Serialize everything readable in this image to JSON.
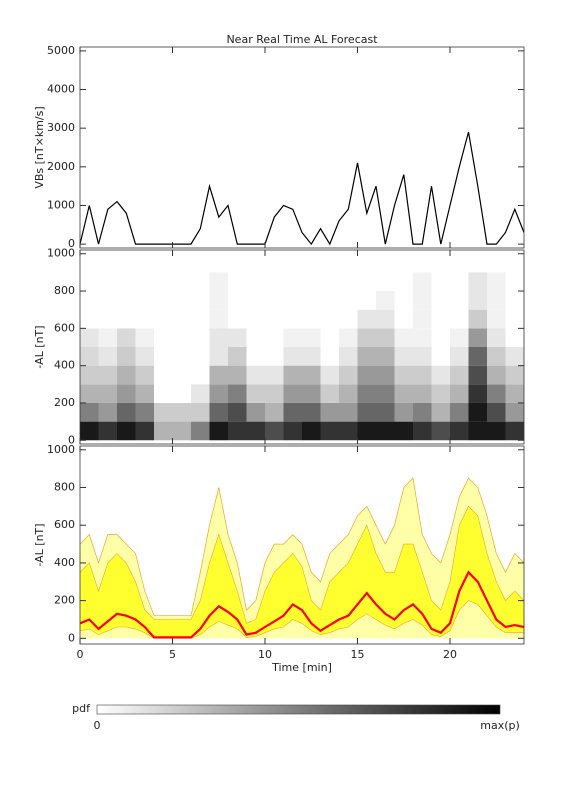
{
  "chart_data": [
    {
      "type": "line",
      "title": "Near Real Time AL Forecast",
      "ylabel": "VBs [nT×km/s]",
      "color": "#000000",
      "xlim": [
        0,
        24
      ],
      "ylim": [
        -100,
        5100
      ],
      "yticks": [
        0,
        1000,
        2000,
        3000,
        4000,
        5000
      ],
      "x": [
        0,
        0.5,
        1,
        1.5,
        2,
        2.5,
        3,
        3.5,
        4,
        4.5,
        5,
        5.5,
        6,
        6.5,
        7,
        7.5,
        8,
        8.5,
        9,
        9.5,
        10,
        10.5,
        11,
        11.5,
        12,
        12.5,
        13,
        13.5,
        14,
        14.5,
        15,
        15.5,
        16,
        16.5,
        17,
        17.5,
        18,
        18.5,
        19,
        19.5,
        20,
        20.5,
        21,
        21.5,
        22,
        22.5,
        23,
        23.5,
        24
      ],
      "values": [
        0,
        1000,
        0,
        900,
        1100,
        800,
        0,
        0,
        0,
        0,
        0,
        0,
        0,
        400,
        1500,
        700,
        1000,
        0,
        0,
        0,
        0,
        700,
        1000,
        900,
        300,
        0,
        400,
        0,
        600,
        900,
        2100,
        800,
        1500,
        0,
        1000,
        1800,
        0,
        0,
        1500,
        0,
        1000,
        2000,
        2900,
        1500,
        0,
        0,
        300,
        900,
        300
      ]
    },
    {
      "type": "heatmap",
      "ylabel": "-AL [nT]",
      "xlim": [
        0,
        24
      ],
      "ylim": [
        -20,
        1020
      ],
      "yticks": [
        0,
        200,
        400,
        600,
        800,
        1000
      ],
      "xbins": [
        0,
        1,
        2,
        3,
        4,
        5,
        6,
        7,
        8,
        9,
        10,
        11,
        12,
        13,
        14,
        15,
        16,
        17,
        18,
        19,
        20,
        21,
        22,
        23,
        24
      ],
      "ybins": [
        0,
        100,
        200,
        300,
        400,
        500,
        600,
        700,
        800,
        900
      ],
      "z": [
        [
          0.9,
          0.8,
          0.9,
          0.8,
          0.3,
          0.3,
          0.5,
          0.9,
          0.8,
          0.8,
          0.7,
          0.8,
          0.9,
          0.8,
          0.8,
          0.9,
          0.9,
          0.9,
          0.8,
          0.7,
          0.8,
          0.9,
          0.9,
          0.8
        ],
        [
          0.5,
          0.4,
          0.6,
          0.5,
          0.2,
          0.2,
          0.2,
          0.6,
          0.7,
          0.4,
          0.3,
          0.6,
          0.6,
          0.4,
          0.4,
          0.6,
          0.6,
          0.4,
          0.5,
          0.3,
          0.5,
          0.9,
          0.7,
          0.4
        ],
        [
          0.3,
          0.3,
          0.4,
          0.3,
          0,
          0,
          0.1,
          0.4,
          0.5,
          0.2,
          0.2,
          0.4,
          0.4,
          0.2,
          0.3,
          0.5,
          0.5,
          0.3,
          0.3,
          0.2,
          0.3,
          0.8,
          0.5,
          0.3
        ],
        [
          0.2,
          0.2,
          0.3,
          0.2,
          0,
          0,
          0,
          0.3,
          0.3,
          0.1,
          0.1,
          0.3,
          0.3,
          0.1,
          0.2,
          0.4,
          0.4,
          0.2,
          0.2,
          0.1,
          0.2,
          0.7,
          0.3,
          0.2
        ],
        [
          0.15,
          0.1,
          0.2,
          0.1,
          0,
          0,
          0,
          0.1,
          0.2,
          0,
          0,
          0.1,
          0.1,
          0,
          0.1,
          0.3,
          0.3,
          0.1,
          0.1,
          0,
          0.1,
          0.6,
          0.2,
          0.1
        ],
        [
          0.1,
          0.05,
          0.15,
          0.05,
          0,
          0,
          0,
          0.1,
          0.1,
          0,
          0,
          0.05,
          0.05,
          0,
          0.05,
          0.2,
          0.2,
          0.05,
          0.05,
          0,
          0.05,
          0.4,
          0.1,
          0
        ],
        [
          0,
          0,
          0,
          0,
          0,
          0,
          0,
          0.05,
          0,
          0,
          0,
          0,
          0,
          0,
          0,
          0.1,
          0.1,
          0,
          0.05,
          0,
          0,
          0.2,
          0.05,
          0
        ],
        [
          0,
          0,
          0,
          0,
          0,
          0,
          0,
          0.05,
          0,
          0,
          0,
          0,
          0,
          0,
          0,
          0,
          0.05,
          0,
          0.05,
          0,
          0,
          0.1,
          0.05,
          0
        ],
        [
          0,
          0,
          0,
          0,
          0,
          0,
          0,
          0.05,
          0,
          0,
          0,
          0,
          0,
          0,
          0,
          0,
          0,
          0,
          0.05,
          0,
          0,
          0.1,
          0.05,
          0
        ]
      ]
    },
    {
      "type": "band",
      "ylabel": "-AL [nT]",
      "xlabel": "Time [min]",
      "xlim": [
        0,
        24
      ],
      "ylim": [
        -30,
        1020
      ],
      "xticks": [
        0,
        5,
        10,
        15,
        20
      ],
      "yticks": [
        0,
        200,
        400,
        600,
        800,
        1000
      ],
      "edge_color": "#f0a030",
      "x": [
        0,
        0.5,
        1,
        1.5,
        2,
        2.5,
        3,
        3.5,
        4,
        4.5,
        5,
        5.5,
        6,
        6.5,
        7,
        7.5,
        8,
        8.5,
        9,
        9.5,
        10,
        10.5,
        11,
        11.5,
        12,
        12.5,
        13,
        13.5,
        14,
        14.5,
        15,
        15.5,
        16,
        16.5,
        17,
        17.5,
        18,
        18.5,
        19,
        19.5,
        20,
        20.5,
        21,
        21.5,
        22,
        22.5,
        23,
        23.5,
        24
      ],
      "series": [
        {
          "color": "#ffffa8",
          "values": [
            500,
            550,
            400,
            550,
            550,
            500,
            450,
            250,
            120,
            120,
            120,
            120,
            120,
            350,
            600,
            800,
            550,
            400,
            150,
            200,
            400,
            500,
            500,
            550,
            500,
            350,
            300,
            450,
            500,
            550,
            650,
            700,
            600,
            500,
            600,
            800,
            850,
            550,
            450,
            400,
            550,
            750,
            850,
            800,
            650,
            450,
            350,
            450,
            400
          ]
        },
        {
          "color": "#ffff30",
          "values": [
            350,
            400,
            250,
            400,
            450,
            400,
            300,
            150,
            100,
            100,
            100,
            100,
            100,
            200,
            400,
            550,
            400,
            250,
            80,
            100,
            250,
            350,
            400,
            450,
            380,
            200,
            150,
            300,
            350,
            400,
            500,
            600,
            450,
            350,
            350,
            500,
            500,
            350,
            200,
            150,
            300,
            600,
            700,
            650,
            450,
            300,
            200,
            250,
            200
          ]
        },
        {
          "color": "#ffff30",
          "values": [
            40,
            50,
            20,
            40,
            60,
            60,
            50,
            30,
            0,
            0,
            0,
            0,
            0,
            20,
            60,
            90,
            70,
            50,
            5,
            10,
            30,
            50,
            60,
            100,
            80,
            40,
            20,
            30,
            50,
            60,
            100,
            130,
            100,
            70,
            50,
            80,
            100,
            70,
            20,
            10,
            40,
            150,
            200,
            180,
            120,
            60,
            30,
            30,
            30
          ]
        },
        {
          "color": "#ff0000",
          "values": [
            80,
            100,
            50,
            90,
            130,
            120,
            100,
            60,
            5,
            5,
            5,
            5,
            5,
            50,
            120,
            170,
            140,
            100,
            20,
            30,
            60,
            90,
            120,
            180,
            150,
            80,
            40,
            70,
            100,
            120,
            180,
            240,
            180,
            130,
            100,
            150,
            180,
            130,
            50,
            30,
            80,
            250,
            350,
            300,
            200,
            100,
            60,
            70,
            60
          ]
        }
      ]
    }
  ],
  "colorbar": {
    "label": "pdf",
    "min_label": "0",
    "max_label": "max(p)"
  }
}
